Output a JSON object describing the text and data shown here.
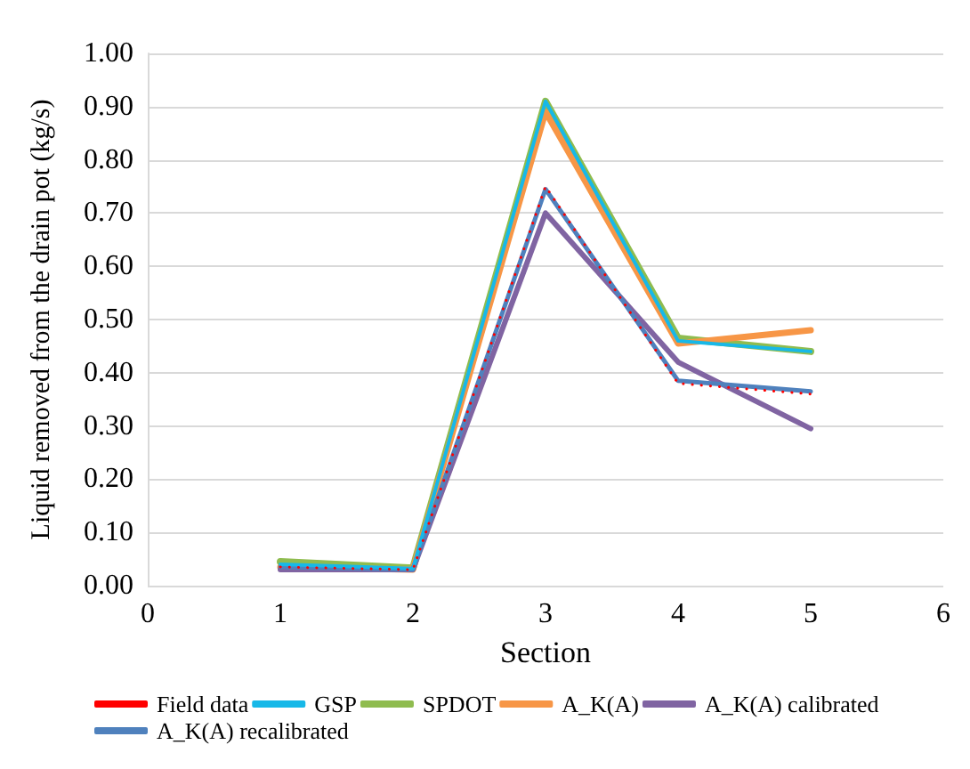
{
  "chart_data": {
    "type": "line",
    "xlabel": "Section",
    "ylabel": "Liquid removed from the drain pot (kg/s)",
    "x": [
      1,
      2,
      3,
      4,
      5
    ],
    "series": [
      {
        "name": "SPDOT",
        "color": "#8fbc4f",
        "values": [
          0.045,
          0.033,
          0.91,
          0.465,
          0.44
        ],
        "line_style": "solid"
      },
      {
        "name": "A_K(A)",
        "color": "#f79646",
        "values": [
          0.035,
          0.03,
          0.89,
          0.455,
          0.48
        ],
        "line_style": "solid"
      },
      {
        "name": "A_K(A) calibrated",
        "color": "#8064a2",
        "values": [
          0.03,
          0.03,
          0.7,
          0.42,
          0.295
        ],
        "line_style": "solid"
      },
      {
        "name": "A_K(A) recalibrated",
        "color": "#4f81bd",
        "values": [
          0.035,
          0.03,
          0.745,
          0.385,
          0.365
        ],
        "line_style": "solid"
      },
      {
        "name": "GSP",
        "color": "#17b8e8",
        "values": [
          0.04,
          0.032,
          0.91,
          0.46,
          0.44
        ],
        "line_style": "solid"
      },
      {
        "name": "Field data",
        "color": "#ff0000",
        "values": [
          0.035,
          0.03,
          0.75,
          0.38,
          0.36
        ],
        "line_style": "dotted"
      }
    ],
    "xlim": [
      0,
      6
    ],
    "xticks": [
      0,
      1,
      2,
      3,
      4,
      5,
      6
    ],
    "ylim": [
      0,
      1
    ],
    "yticks": [
      {
        "value": 0,
        "label": "0.00"
      },
      {
        "value": 0.1,
        "label": "0.10"
      },
      {
        "value": 0.2,
        "label": "0.20"
      },
      {
        "value": 0.3,
        "label": "0.30"
      },
      {
        "value": 0.4,
        "label": "0.40"
      },
      {
        "value": 0.5,
        "label": "0.50"
      },
      {
        "value": 0.6,
        "label": "0.60"
      },
      {
        "value": 0.7,
        "label": "0.70"
      },
      {
        "value": 0.8,
        "label": "0.80"
      },
      {
        "value": 0.9,
        "label": "0.90"
      },
      {
        "value": 1,
        "label": "1.00"
      }
    ],
    "grid": "y",
    "legend": "bottom",
    "marker": "none"
  }
}
